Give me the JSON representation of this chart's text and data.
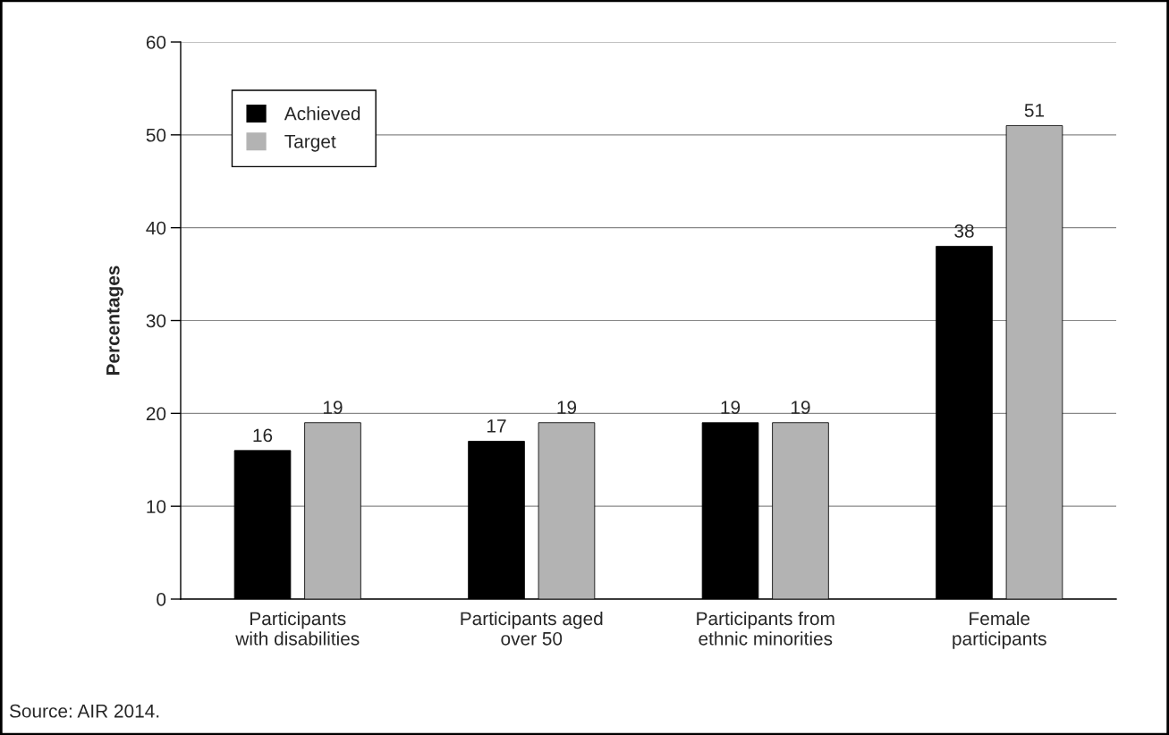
{
  "chart_data": {
    "type": "bar",
    "ylabel": "Percentages",
    "categories": [
      "Participants\nwith disabilities",
      "Participants aged\nover 50",
      "Participants from\nethnic minorities",
      "Female\nparticipants"
    ],
    "series": [
      {
        "name": "Achieved",
        "color": "#000000",
        "values": [
          16,
          17,
          19,
          38
        ]
      },
      {
        "name": "Target",
        "color": "#b3b3b3",
        "values": [
          19,
          19,
          19,
          51
        ]
      }
    ],
    "ylim": [
      0,
      60
    ],
    "yticks": [
      0,
      10,
      20,
      30,
      40,
      50,
      60
    ],
    "grid": "y",
    "legend": "top left",
    "data_labels": true,
    "annotations": [
      "Source: AIR 2014."
    ]
  }
}
